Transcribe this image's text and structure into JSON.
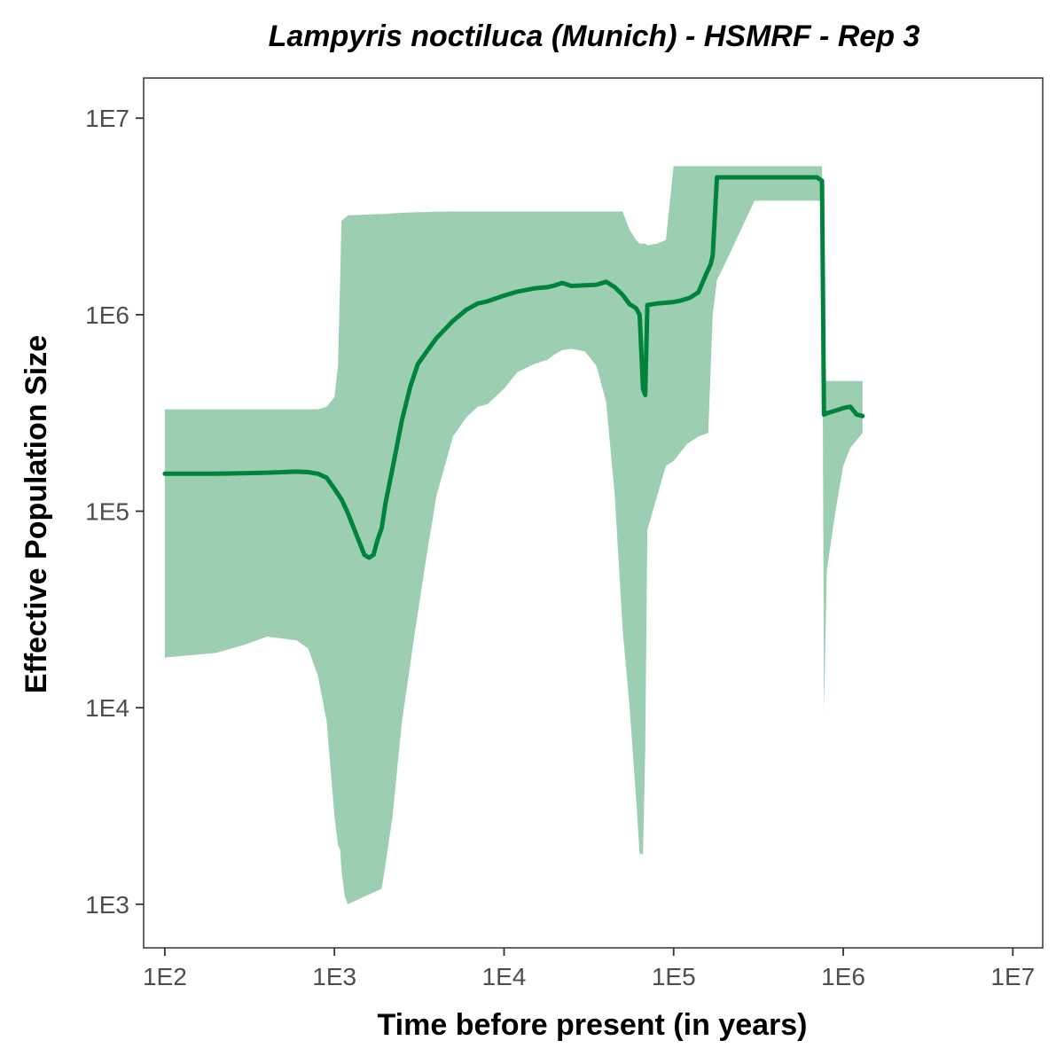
{
  "chart_data": {
    "type": "area",
    "title": "Lampyris noctiluca (Munich) - HSMRF - Rep 3",
    "xlabel": "Time before present (in years)",
    "ylabel": "Effective Population Size",
    "x_scale": "log",
    "y_scale": "log",
    "xlim": [
      75,
      15000000
    ],
    "ylim": [
      600,
      16000000
    ],
    "x_ticks": [
      100,
      1000,
      10000,
      100000,
      1000000,
      10000000
    ],
    "x_tick_labels": [
      "1E2",
      "1E3",
      "1E4",
      "1E5",
      "1E6",
      "1E7"
    ],
    "y_ticks": [
      1000,
      10000,
      100000,
      1000000,
      10000000
    ],
    "y_tick_labels": [
      "1E3",
      "1E4",
      "1E5",
      "1E6",
      "1E7"
    ],
    "grid": false,
    "colors": {
      "line": "#00843d",
      "ribbon": "#9ccfb2",
      "frame": "#333333",
      "tick": "#333333"
    },
    "series": [
      {
        "type": "line",
        "x": [
          100,
          200,
          400,
          600,
          700,
          800,
          900,
          1000,
          1100,
          1200,
          1300,
          1400,
          1500,
          1600,
          1700,
          1800,
          1900,
          2000,
          2200,
          2500,
          2800,
          3100,
          3500,
          4000,
          5000,
          6000,
          7000,
          8000,
          10000,
          12000,
          15000,
          18000,
          20000,
          22000,
          25000,
          30000,
          35000,
          40000,
          45000,
          50000,
          55000,
          60000,
          63000,
          66000,
          68000,
          70000,
          80000,
          100000,
          110000,
          125000,
          140000,
          155000,
          165000,
          170000,
          180000,
          200000,
          300000,
          500000,
          700000,
          750000,
          770000,
          800000,
          900000,
          1000000,
          1100000,
          1200000,
          1300000
        ],
        "y": [
          155000,
          155000,
          157000,
          159000,
          158000,
          155000,
          148000,
          130000,
          115000,
          98000,
          82000,
          70000,
          60000,
          58000,
          60000,
          72000,
          82000,
          110000,
          165000,
          290000,
          430000,
          560000,
          650000,
          760000,
          930000,
          1060000,
          1140000,
          1170000,
          1250000,
          1310000,
          1360000,
          1380000,
          1410000,
          1450000,
          1400000,
          1410000,
          1420000,
          1470000,
          1380000,
          1260000,
          1130000,
          1080000,
          1000000,
          420000,
          390000,
          1120000,
          1140000,
          1160000,
          1180000,
          1220000,
          1300000,
          1600000,
          1800000,
          2000000,
          5000000,
          5000000,
          5000000,
          5000000,
          5000000,
          4800000,
          310000,
          315000,
          325000,
          335000,
          340000,
          310000,
          305000
        ]
      },
      {
        "type": "ribbon",
        "x": [
          100,
          200,
          300,
          400,
          600,
          700,
          800,
          900,
          1000,
          1050,
          1080,
          1100,
          1150,
          1200,
          1900,
          2000,
          2200,
          2500,
          3000,
          3500,
          4000,
          5000,
          6000,
          7000,
          8000,
          10000,
          12000,
          15000,
          18000,
          20000,
          22000,
          25000,
          30000,
          35000,
          40000,
          45000,
          50000,
          55000,
          60000,
          63000,
          66000,
          68000,
          70000,
          80000,
          90000,
          100000,
          120000,
          140000,
          160000,
          170000,
          180000,
          200000,
          300000,
          500000,
          700000,
          750000,
          770000,
          800000,
          900000,
          1000000,
          1100000,
          1200000,
          1300000
        ],
        "upper": [
          330000,
          330000,
          330000,
          330000,
          330000,
          330000,
          330000,
          340000,
          380000,
          550000,
          1500000,
          3000000,
          3100000,
          3200000,
          3250000,
          3250000,
          3280000,
          3300000,
          3320000,
          3330000,
          3340000,
          3350000,
          3350000,
          3350000,
          3350000,
          3350000,
          3350000,
          3350000,
          3350000,
          3350000,
          3350000,
          3350000,
          3350000,
          3350000,
          3350000,
          3350000,
          3350000,
          2700000,
          2400000,
          2300000,
          2300000,
          2300000,
          2250000,
          2300000,
          2400000,
          5700000,
          5700000,
          5700000,
          5700000,
          5700000,
          5700000,
          5700000,
          5700000,
          5700000,
          5700000,
          5700000,
          460000,
          460000,
          460000,
          460000,
          460000,
          460000,
          460000
        ],
        "lower": [
          18000,
          19000,
          21000,
          23000,
          22000,
          20000,
          14500,
          8500,
          2800,
          2000,
          1900,
          1500,
          1100,
          1000,
          1200,
          1600,
          2800,
          8500,
          25000,
          60000,
          120000,
          240000,
          300000,
          340000,
          350000,
          420000,
          510000,
          560000,
          590000,
          630000,
          660000,
          670000,
          650000,
          550000,
          360000,
          120000,
          25000,
          10000,
          3500,
          1800,
          1800,
          6000,
          80000,
          120000,
          170000,
          180000,
          220000,
          240000,
          250000,
          1000000,
          1500000,
          1800000,
          3800000,
          3800000,
          3800000,
          3800000,
          9500,
          50000,
          100000,
          170000,
          210000,
          230000,
          250000
        ]
      }
    ]
  }
}
